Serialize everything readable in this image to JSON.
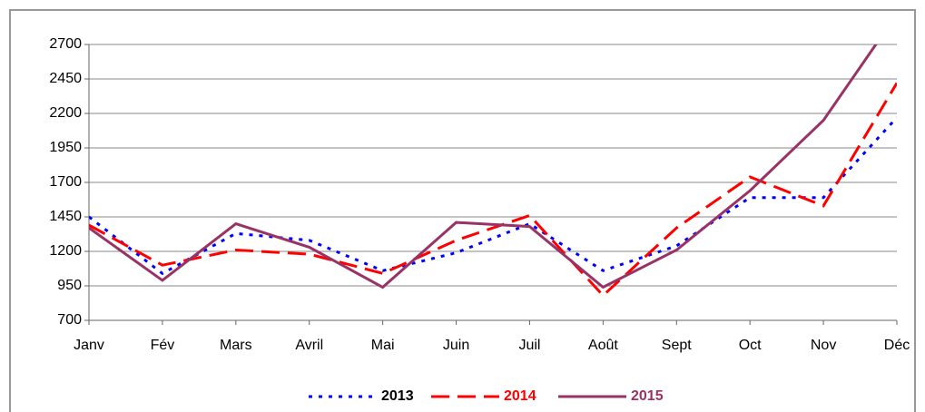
{
  "chart_data": {
    "type": "line",
    "categories": [
      "Janv",
      "Fév",
      "Mars",
      "Avril",
      "Mai",
      "Juin",
      "Juil",
      "Août",
      "Sept",
      "Oct",
      "Nov",
      "Déc"
    ],
    "series": [
      {
        "name": "2013",
        "color": "#0000ff",
        "dash": "dotted",
        "values": [
          1450,
          1040,
          1330,
          1280,
          1060,
          1190,
          1400,
          1060,
          1240,
          1590,
          1590,
          2170
        ]
      },
      {
        "name": "2014",
        "color": "#ff0000",
        "dash": "dashed",
        "values": [
          1390,
          1100,
          1210,
          1180,
          1040,
          1280,
          1460,
          880,
          1370,
          1740,
          1530,
          2420
        ]
      },
      {
        "name": "2015",
        "color": "#993366",
        "dash": "solid",
        "values": [
          1370,
          990,
          1400,
          1230,
          940,
          1410,
          1380,
          940,
          1210,
          1640,
          2150,
          2920
        ]
      }
    ],
    "ylim": [
      700,
      2700
    ],
    "yticks": [
      700,
      950,
      1200,
      1450,
      1700,
      1950,
      2200,
      2450,
      2700
    ],
    "grid": true,
    "legend": "bottom"
  }
}
